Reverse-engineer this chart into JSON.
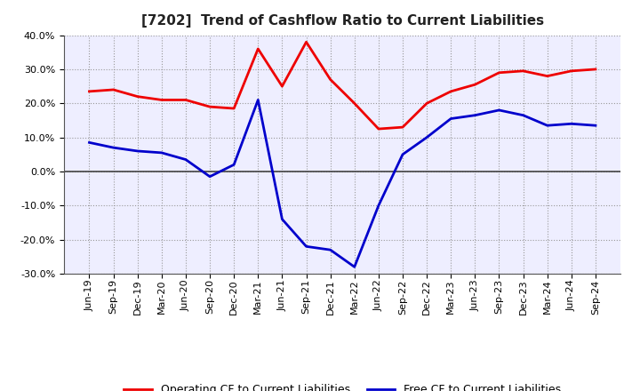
{
  "title": "[7202]  Trend of Cashflow Ratio to Current Liabilities",
  "x_labels": [
    "Jun-19",
    "Sep-19",
    "Dec-19",
    "Mar-20",
    "Jun-20",
    "Sep-20",
    "Dec-20",
    "Mar-21",
    "Jun-21",
    "Sep-21",
    "Dec-21",
    "Mar-22",
    "Jun-22",
    "Sep-22",
    "Dec-22",
    "Mar-23",
    "Jun-23",
    "Sep-23",
    "Dec-23",
    "Mar-24",
    "Jun-24",
    "Sep-24"
  ],
  "operating_cf": [
    23.5,
    24.0,
    22.0,
    21.0,
    21.0,
    19.0,
    18.5,
    36.0,
    25.0,
    38.0,
    27.0,
    20.0,
    12.5,
    13.0,
    20.0,
    23.5,
    25.5,
    29.0,
    29.5,
    28.0,
    29.5,
    30.0
  ],
  "free_cf": [
    8.5,
    7.0,
    6.0,
    5.5,
    3.5,
    -1.5,
    2.0,
    21.0,
    -14.0,
    -22.0,
    -23.0,
    -28.0,
    -10.0,
    5.0,
    10.0,
    15.5,
    16.5,
    18.0,
    16.5,
    13.5,
    14.0,
    13.5
  ],
  "operating_color": "#EE0000",
  "free_color": "#0000CC",
  "background_color": "#FFFFFF",
  "plot_bg_color": "#EEEEFF",
  "grid_color": "#999999",
  "ylim": [
    -30.0,
    40.0
  ],
  "yticks": [
    -30.0,
    -20.0,
    -10.0,
    0.0,
    10.0,
    20.0,
    30.0,
    40.0
  ],
  "legend_operating": "Operating CF to Current Liabilities",
  "legend_free": "Free CF to Current Liabilities",
  "title_fontsize": 11,
  "tick_fontsize": 8,
  "legend_fontsize": 9
}
